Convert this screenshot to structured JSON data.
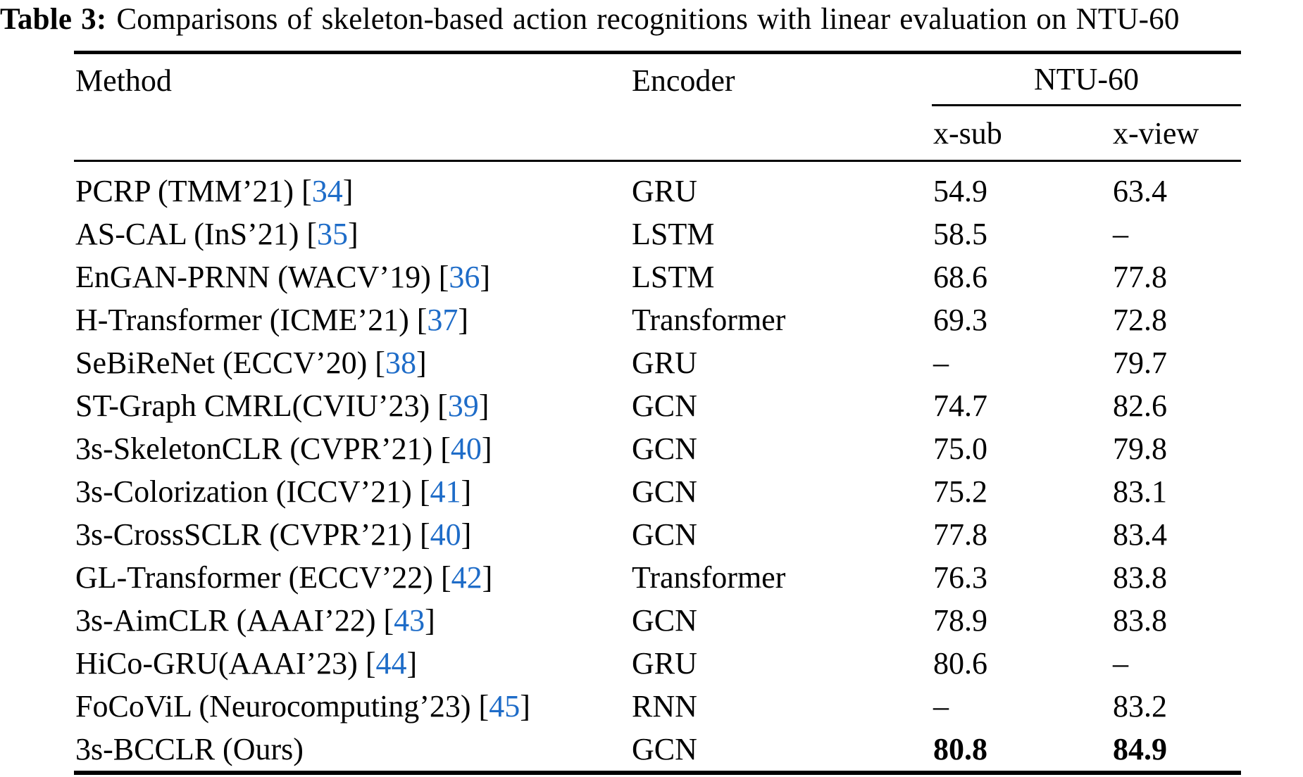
{
  "caption": {
    "label": "Table 3:",
    "text": "Comparisons of skeleton-based action recognitions with linear evaluation on NTU-60"
  },
  "colors": {
    "citation": "#1e6cc8",
    "text": "#000000",
    "background": "#ffffff"
  },
  "table": {
    "headers": {
      "method": "Method",
      "encoder": "Encoder",
      "group": "NTU-60",
      "sub1": "x-sub",
      "sub2": "x-view"
    },
    "missing_marker": "–",
    "rows": [
      {
        "method": "PCRP (TMM’21)",
        "cite": "34",
        "encoder": "GRU",
        "x_sub": "54.9",
        "x_view": "63.4",
        "bold_values": false
      },
      {
        "method": "AS-CAL (InS’21)",
        "cite": "35",
        "encoder": "LSTM",
        "x_sub": "58.5",
        "x_view": "–",
        "bold_values": false
      },
      {
        "method": "EnGAN-PRNN (WACV’19)",
        "cite": "36",
        "encoder": "LSTM",
        "x_sub": "68.6",
        "x_view": "77.8",
        "bold_values": false
      },
      {
        "method": "H-Transformer (ICME’21)",
        "cite": "37",
        "encoder": "Transformer",
        "x_sub": "69.3",
        "x_view": "72.8",
        "bold_values": false
      },
      {
        "method": "SeBiReNet (ECCV’20)",
        "cite": "38",
        "encoder": "GRU",
        "x_sub": "–",
        "x_view": "79.7",
        "bold_values": false
      },
      {
        "method": "ST-Graph CMRL(CVIU’23)",
        "cite": "39",
        "encoder": "GCN",
        "x_sub": "74.7",
        "x_view": "82.6",
        "bold_values": false
      },
      {
        "method": "3s-SkeletonCLR (CVPR’21)",
        "cite": "40",
        "encoder": "GCN",
        "x_sub": "75.0",
        "x_view": "79.8",
        "bold_values": false
      },
      {
        "method": "3s-Colorization (ICCV’21)",
        "cite": "41",
        "encoder": "GCN",
        "x_sub": "75.2",
        "x_view": "83.1",
        "bold_values": false
      },
      {
        "method": "3s-CrossSCLR (CVPR’21)",
        "cite": "40",
        "encoder": "GCN",
        "x_sub": "77.8",
        "x_view": "83.4",
        "bold_values": false
      },
      {
        "method": "GL-Transformer (ECCV’22)",
        "cite": "42",
        "encoder": "Transformer",
        "x_sub": "76.3",
        "x_view": "83.8",
        "bold_values": false
      },
      {
        "method": "3s-AimCLR (AAAI’22)",
        "cite": "43",
        "encoder": "GCN",
        "x_sub": "78.9",
        "x_view": "83.8",
        "bold_values": false
      },
      {
        "method": "HiCo-GRU(AAAI’23)",
        "cite": "44",
        "encoder": "GRU",
        "x_sub": "80.6",
        "x_view": "–",
        "bold_values": false
      },
      {
        "method": "FoCoViL (Neurocomputing’23)",
        "cite": "45",
        "encoder": "RNN",
        "x_sub": "–",
        "x_view": "83.2",
        "bold_values": false
      },
      {
        "method": "3s-BCCLR (Ours)",
        "cite": null,
        "encoder": "GCN",
        "x_sub": "80.8",
        "x_view": "84.9",
        "bold_values": true
      }
    ]
  }
}
